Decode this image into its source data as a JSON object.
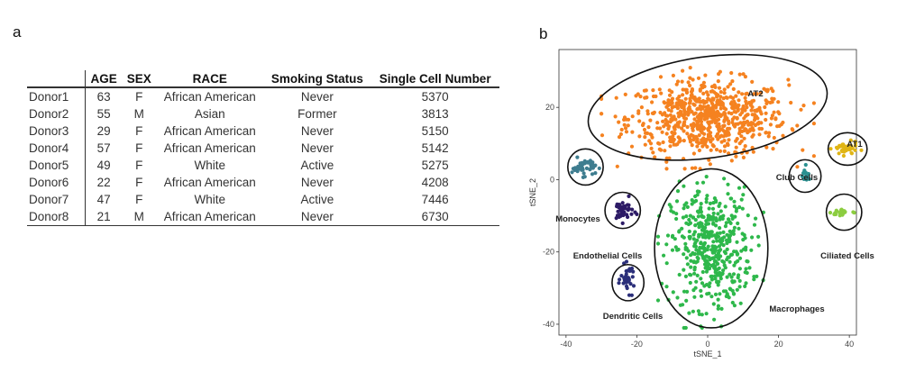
{
  "panels": {
    "a": "a",
    "b": "b"
  },
  "table": {
    "columns": [
      "",
      "AGE",
      "SEX",
      "RACE",
      "Smoking Status",
      "Single Cell Number"
    ],
    "rows": [
      [
        "Donor1",
        "63",
        "F",
        "African American",
        "Never",
        "5370"
      ],
      [
        "Donor2",
        "55",
        "M",
        "Asian",
        "Former",
        "3813"
      ],
      [
        "Donor3",
        "29",
        "F",
        "African American",
        "Never",
        "5150"
      ],
      [
        "Donor4",
        "57",
        "F",
        "African American",
        "Never",
        "5142"
      ],
      [
        "Donor5",
        "49",
        "F",
        "White",
        "Active",
        "5275"
      ],
      [
        "Donor6",
        "22",
        "F",
        "African American",
        "Never",
        "4208"
      ],
      [
        "Donor7",
        "47",
        "F",
        "White",
        "Active",
        "7446"
      ],
      [
        "Donor8",
        "21",
        "M",
        "African American",
        "Never",
        "6730"
      ]
    ]
  },
  "chart_data": {
    "type": "scatter",
    "xlabel": "tSNE_1",
    "ylabel": "tSNE_2",
    "xlim": [
      -42,
      42
    ],
    "ylim": [
      -43,
      36
    ],
    "xticks": [
      -40,
      -20,
      0,
      20,
      40
    ],
    "yticks": [
      -40,
      -20,
      0,
      20
    ],
    "grid": false,
    "clusters": [
      {
        "name": "AT2",
        "color": "#f58220",
        "center": [
          0,
          17
        ],
        "spread": [
          15,
          7
        ],
        "n": 700
      },
      {
        "name": "Macrophages",
        "color": "#2eb84b",
        "center": [
          1,
          -19
        ],
        "spread": [
          7.5,
          11
        ],
        "n": 460
      },
      {
        "name": "Monocytes",
        "color": "#3e7d8f",
        "center": [
          -35,
          3.5
        ],
        "spread": [
          2.2,
          1.6
        ],
        "n": 45
      },
      {
        "name": "Endothelial Cells",
        "color": "#2d1b66",
        "center": [
          -24,
          -8.5
        ],
        "spread": [
          2,
          2
        ],
        "n": 40
      },
      {
        "name": "Dendritic Cells",
        "color": "#2b2f7a",
        "center": [
          -22.5,
          -27.5
        ],
        "spread": [
          1.3,
          2.4
        ],
        "n": 35
      },
      {
        "name": "AT1",
        "color": "#e0b515",
        "center": [
          39,
          8.5
        ],
        "spread": [
          2.2,
          1.2
        ],
        "n": 45
      },
      {
        "name": "Club Cells",
        "color": "#2a9090",
        "center": [
          27.5,
          1
        ],
        "spread": [
          0.9,
          1.6
        ],
        "n": 16
      },
      {
        "name": "Ciliated Cells",
        "color": "#8ccd40",
        "center": [
          38,
          -9
        ],
        "spread": [
          2,
          0.9
        ],
        "n": 22
      }
    ],
    "outlines": [
      {
        "label": "AT2",
        "center": [
          0,
          20
        ],
        "radii": [
          34,
          14
        ],
        "rotation": -8
      },
      {
        "label": "Macrophages",
        "center": [
          1,
          -19
        ],
        "radii": [
          16,
          22
        ],
        "rotation": 0
      },
      {
        "label": "Monocytes",
        "center": [
          -34.5,
          3.5
        ],
        "radii": [
          5,
          5
        ],
        "rotation": 0
      },
      {
        "label": "Endothelial Cells",
        "center": [
          -24,
          -8.5
        ],
        "radii": [
          5,
          5
        ],
        "rotation": 0
      },
      {
        "label": "Dendritic Cells",
        "center": [
          -22.5,
          -28.5
        ],
        "radii": [
          4.5,
          5
        ],
        "rotation": 0
      },
      {
        "label": "AT1",
        "center": [
          39.5,
          8.5
        ],
        "radii": [
          5.5,
          4.5
        ],
        "rotation": 0
      },
      {
        "label": "Club Cells",
        "center": [
          27.5,
          1
        ],
        "radii": [
          4.5,
          4.5
        ],
        "rotation": 0
      },
      {
        "label": "Ciliated Cells",
        "center": [
          38.5,
          -9
        ],
        "radii": [
          5,
          5
        ],
        "rotation": 0
      }
    ],
    "annotations": [
      "AT2",
      "AT1",
      "Club Cells",
      "Monocytes",
      "Endothelial Cells",
      "Ciliated Cells",
      "Dendritic Cells",
      "Macrophages"
    ]
  }
}
